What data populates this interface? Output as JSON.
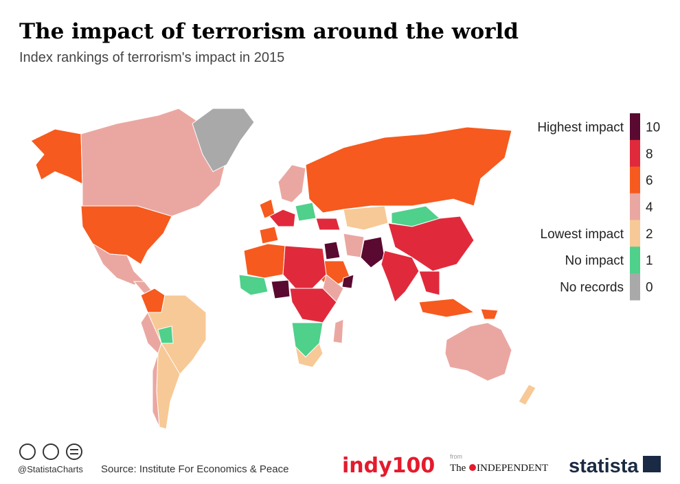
{
  "header": {
    "title": "The impact of terrorism around the world",
    "subtitle": "Index rankings of terrorism's impact in 2015"
  },
  "legend": {
    "items": [
      {
        "label": "Highest impact",
        "value": 10,
        "color": "#5a0a30"
      },
      {
        "value": 8,
        "color": "#e02a3c"
      },
      {
        "value": 6,
        "color": "#f65a1e"
      },
      {
        "value": 4,
        "color": "#eaa7a1"
      },
      {
        "label": "Lowest impact",
        "value": 2,
        "color": "#f7c996"
      },
      {
        "label": "No impact",
        "value": 1,
        "color": "#4fd08b"
      },
      {
        "label": "No records",
        "value": 0,
        "color": "#a9a9a9"
      }
    ]
  },
  "footer": {
    "handle": "@StatistaCharts",
    "source": "Source: Institute For Economics & Peace",
    "logos": {
      "indy": "indy100",
      "from": "from",
      "the": "The",
      "independent": "INDEPENDENT",
      "statista": "statista"
    }
  }
}
